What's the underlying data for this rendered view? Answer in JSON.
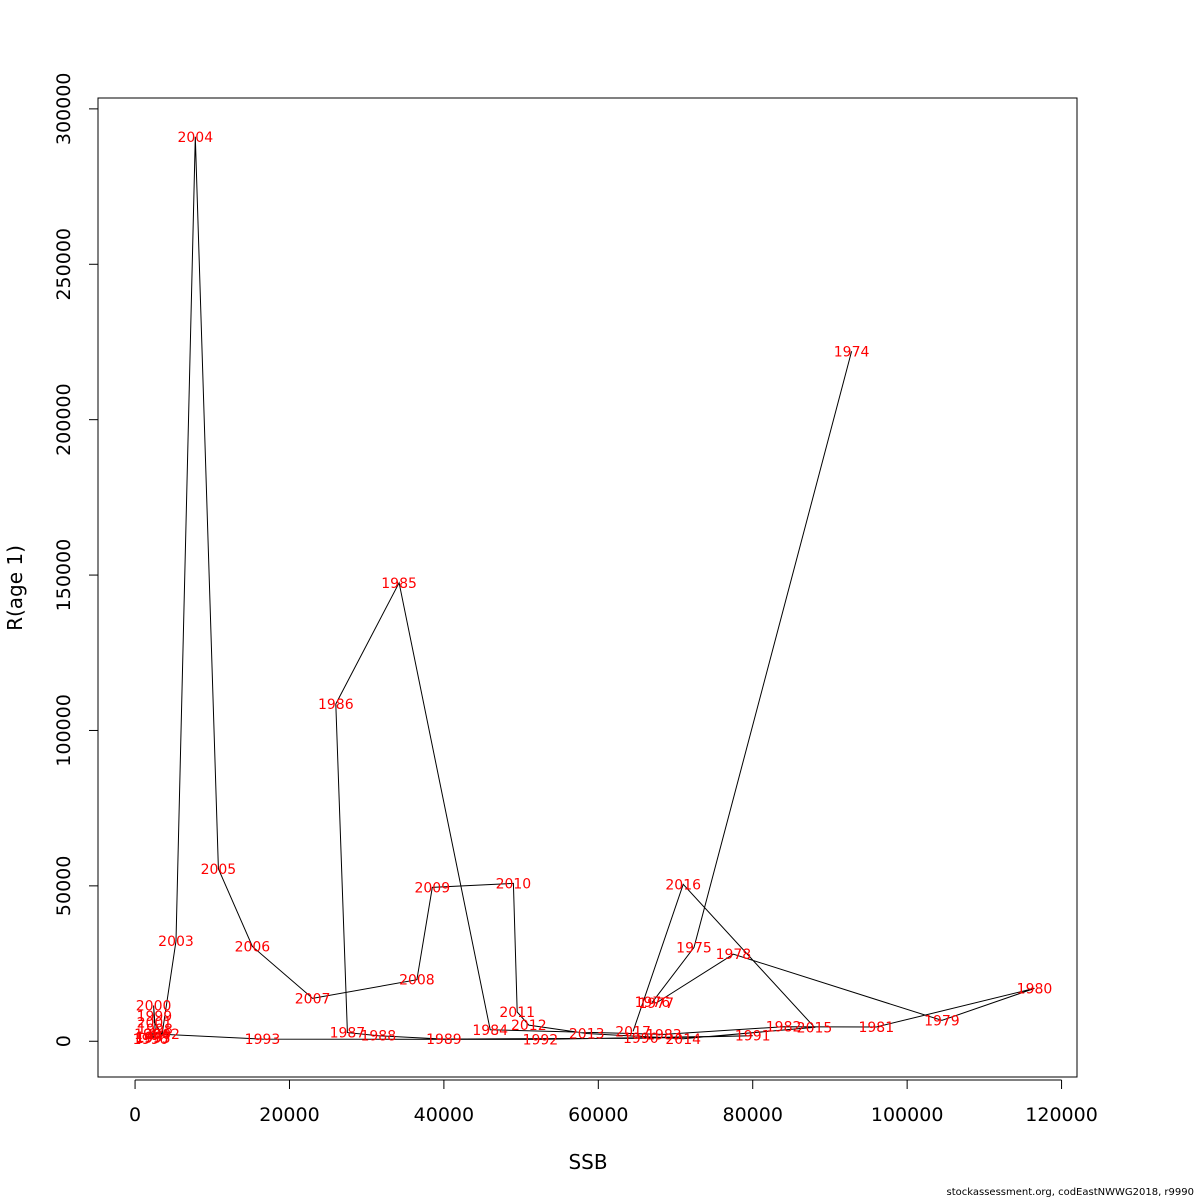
{
  "footer": "stockassessment.org, codEastNWWG2018, r9990",
  "colors": {
    "line": "#000000",
    "label": "#ff0000"
  },
  "chart_data": {
    "type": "line",
    "xlabel": "SSB",
    "ylabel": "R(age 1)",
    "xlim": [
      -4800,
      122000
    ],
    "ylim": [
      -11500,
      303500
    ],
    "xticks": [
      0,
      20000,
      40000,
      60000,
      80000,
      100000,
      120000
    ],
    "yticks": [
      0,
      50000,
      100000,
      150000,
      200000,
      250000,
      300000
    ],
    "grid": false,
    "points": [
      {
        "year": "1974",
        "x": 92800,
        "y": 222000
      },
      {
        "year": "1975",
        "x": 72400,
        "y": 30200
      },
      {
        "year": "1976",
        "x": 67000,
        "y": 12600
      },
      {
        "year": "1977",
        "x": 67500,
        "y": 12300
      },
      {
        "year": "1978",
        "x": 77500,
        "y": 28000
      },
      {
        "year": "1979",
        "x": 104500,
        "y": 6700
      },
      {
        "year": "1980",
        "x": 116500,
        "y": 17000
      },
      {
        "year": "1981",
        "x": 96000,
        "y": 4600
      },
      {
        "year": "1982",
        "x": 84000,
        "y": 4700
      },
      {
        "year": "1983",
        "x": 68500,
        "y": 2200
      },
      {
        "year": "1984",
        "x": 46000,
        "y": 3700
      },
      {
        "year": "1985",
        "x": 34200,
        "y": 147500
      },
      {
        "year": "1986",
        "x": 26000,
        "y": 108500
      },
      {
        "year": "1987",
        "x": 27500,
        "y": 2800
      },
      {
        "year": "1988",
        "x": 31500,
        "y": 1800
      },
      {
        "year": "1989",
        "x": 40000,
        "y": 700
      },
      {
        "year": "1990",
        "x": 65500,
        "y": 1000
      },
      {
        "year": "1991",
        "x": 80000,
        "y": 1800
      },
      {
        "year": "1992",
        "x": 52500,
        "y": 600
      },
      {
        "year": "1993",
        "x": 16500,
        "y": 700
      },
      {
        "year": "1994",
        "x": 2200,
        "y": 2400
      },
      {
        "year": "1995",
        "x": 2300,
        "y": 1000
      },
      {
        "year": "1996",
        "x": 2000,
        "y": 800
      },
      {
        "year": "1997",
        "x": 2400,
        "y": 1400
      },
      {
        "year": "1998",
        "x": 2600,
        "y": 3900
      },
      {
        "year": "1999",
        "x": 2500,
        "y": 8100
      },
      {
        "year": "2000",
        "x": 2400,
        "y": 11500
      },
      {
        "year": "2001",
        "x": 2500,
        "y": 6000
      },
      {
        "year": "2002",
        "x": 3500,
        "y": 2300
      },
      {
        "year": "2003",
        "x": 5300,
        "y": 32300
      },
      {
        "year": "2004",
        "x": 7800,
        "y": 291000
      },
      {
        "year": "2005",
        "x": 10800,
        "y": 55500
      },
      {
        "year": "2006",
        "x": 15200,
        "y": 30500
      },
      {
        "year": "2007",
        "x": 23000,
        "y": 13800
      },
      {
        "year": "2008",
        "x": 36500,
        "y": 19800
      },
      {
        "year": "2009",
        "x": 38500,
        "y": 49500
      },
      {
        "year": "2010",
        "x": 49000,
        "y": 50800
      },
      {
        "year": "2011",
        "x": 49500,
        "y": 9400
      },
      {
        "year": "2012",
        "x": 51000,
        "y": 5200
      },
      {
        "year": "2013",
        "x": 58500,
        "y": 2500
      },
      {
        "year": "2014",
        "x": 71000,
        "y": 800
      },
      {
        "year": "2015",
        "x": 88000,
        "y": 4500
      },
      {
        "year": "2016",
        "x": 71000,
        "y": 50500
      },
      {
        "year": "2017",
        "x": 64500,
        "y": 3200
      }
    ]
  }
}
